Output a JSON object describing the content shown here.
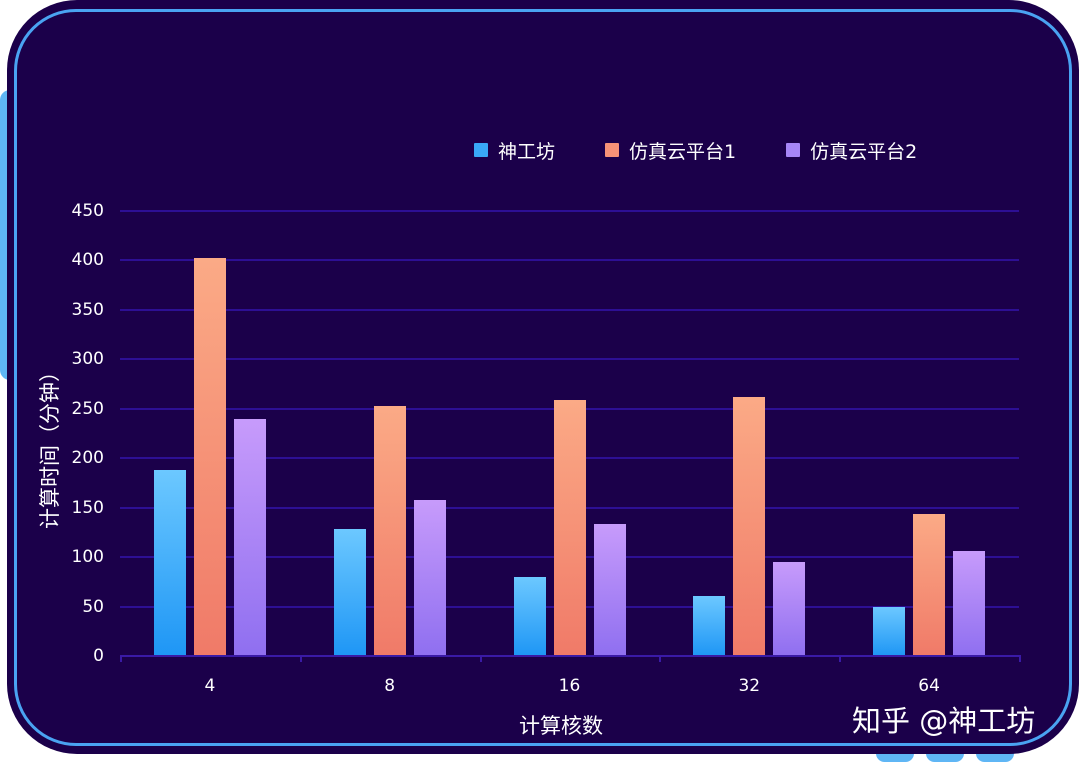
{
  "colors": {
    "background": "#1b004a",
    "frame_border": "#4aa3f2",
    "grid": "#2d0f94",
    "series": {
      "神工坊": {
        "top": "#6cc8ff",
        "bottom": "#1e96f5"
      },
      "仿真云平台1": {
        "top": "#fbaa86",
        "bottom": "#f07a68"
      },
      "仿真云平台2": {
        "top": "#c79bfb",
        "bottom": "#8f6ff0"
      }
    }
  },
  "legend": [
    {
      "label": "神工坊",
      "color": "#39a9f7"
    },
    {
      "label": "仿真云平台1",
      "color": "#f79277"
    },
    {
      "label": "仿真云平台2",
      "color": "#a685f6"
    }
  ],
  "y_ticks": [
    "0",
    "50",
    "100",
    "150",
    "200",
    "250",
    "300",
    "350",
    "400",
    "450"
  ],
  "watermark": "知乎 @神工坊",
  "chart_data": {
    "type": "bar",
    "title": "",
    "xlabel": "计算核数",
    "ylabel": "计算时间（分钟）",
    "categories": [
      "4",
      "8",
      "16",
      "32",
      "64"
    ],
    "series": [
      {
        "name": "神工坊",
        "values": [
          188,
          128,
          80,
          61,
          50
        ]
      },
      {
        "name": "仿真云平台1",
        "values": [
          402,
          253,
          259,
          262,
          144
        ]
      },
      {
        "name": "仿真云平台2",
        "values": [
          240,
          158,
          134,
          95,
          106
        ]
      }
    ],
    "ylim": [
      0,
      450
    ],
    "y_tick_step": 50,
    "grid": true,
    "legend_position": "top-right"
  }
}
